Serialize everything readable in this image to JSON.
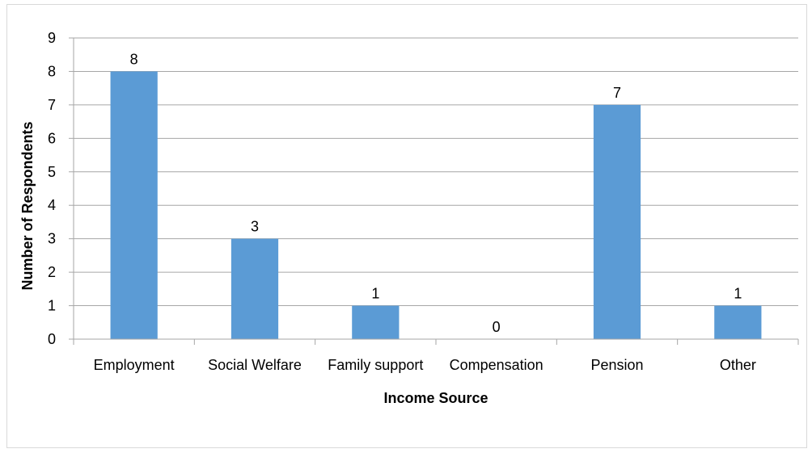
{
  "chart_data": {
    "type": "bar",
    "title": "",
    "xlabel": "Income Source",
    "ylabel": "Number of Respondents",
    "categories": [
      "Employment",
      "Social Welfare",
      "Family support",
      "Compensation",
      "Pension",
      "Other"
    ],
    "series": [
      {
        "values": [
          8,
          3,
          1,
          0,
          7,
          1
        ],
        "color": "#5b9bd5"
      }
    ],
    "data_labels": [
      "8",
      "3",
      "1",
      "0",
      "7",
      "1"
    ],
    "yticks": [
      "0",
      "1",
      "2",
      "3",
      "4",
      "5",
      "6",
      "7",
      "8",
      "9"
    ],
    "ylim": [
      0,
      9
    ],
    "grid": true,
    "legend": "none",
    "colors": {
      "bar": "#5b9bd5",
      "gridline": "#a6a6a6",
      "axis": "#a6a6a6",
      "border": "#d9d9d9"
    }
  }
}
